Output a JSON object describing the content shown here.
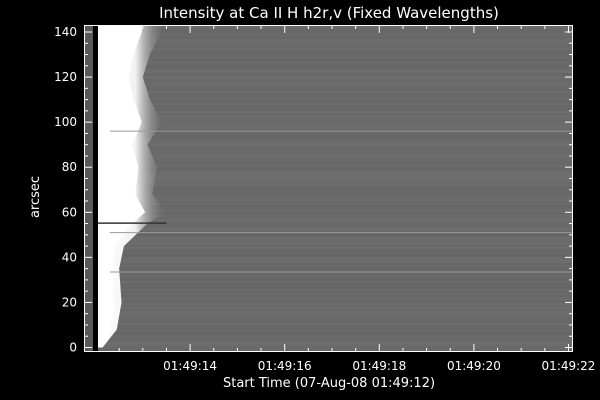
{
  "chart_data": {
    "type": "heatmap",
    "title": "Intensity at Ca II H h2r,v (Fixed Wavelengths)",
    "xlabel": "Start Time (07-Aug-08 01:49:12)",
    "ylabel": "arcsec",
    "x_tick_labels": [
      "01:49:14",
      "01:49:16",
      "01:49:18",
      "01:49:20",
      "01:49:22"
    ],
    "x_tick_values_s": [
      2,
      4,
      6,
      8,
      10
    ],
    "xlim_s": [
      0,
      10
    ],
    "y_tick_labels": [
      "0",
      "20",
      "40",
      "60",
      "80",
      "100",
      "120",
      "140"
    ],
    "y_tick_values": [
      0,
      20,
      40,
      60,
      80,
      100,
      120,
      140
    ],
    "ylim": [
      -2,
      145
    ],
    "colormap": "grayscale",
    "background_color": "#6e6e6e",
    "grid": false,
    "features": {
      "bright_band_edge_s": [
        {
          "y": 0,
          "x": 0.15
        },
        {
          "y": 8,
          "x": 0.45
        },
        {
          "y": 20,
          "x": 0.55
        },
        {
          "y": 35,
          "x": 0.5
        },
        {
          "y": 45,
          "x": 0.6
        },
        {
          "y": 55,
          "x": 1.1
        },
        {
          "y": 60,
          "x": 1.5
        },
        {
          "y": 68,
          "x": 1.2
        },
        {
          "y": 80,
          "x": 1.3
        },
        {
          "y": 90,
          "x": 1.1
        },
        {
          "y": 100,
          "x": 1.4
        },
        {
          "y": 110,
          "x": 1.15
        },
        {
          "y": 120,
          "x": 1.0
        },
        {
          "y": 130,
          "x": 1.15
        },
        {
          "y": 140,
          "x": 1.4
        },
        {
          "y": 145,
          "x": 1.4
        }
      ],
      "dark_lines_y": [
        55.2
      ],
      "light_lines_y": [
        51,
        33.5,
        96
      ]
    }
  }
}
